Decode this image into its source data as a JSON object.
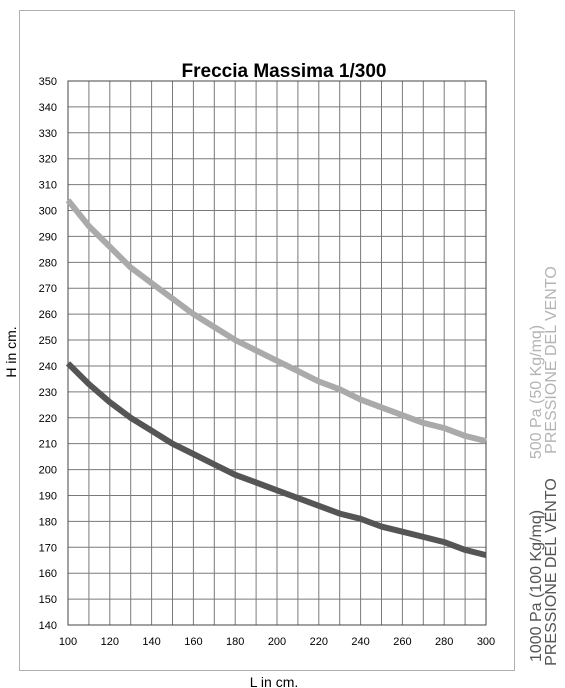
{
  "chart_data": {
    "type": "line",
    "title": "Freccia Massima 1/300",
    "xlabel": "L in cm.",
    "ylabel": "H  in cm.",
    "xlim": [
      100,
      300
    ],
    "ylim": [
      140,
      350
    ],
    "x_ticks": [
      100,
      120,
      140,
      160,
      180,
      200,
      220,
      240,
      260,
      280,
      300
    ],
    "y_ticks": [
      140,
      150,
      160,
      170,
      180,
      190,
      200,
      210,
      220,
      230,
      240,
      250,
      260,
      270,
      280,
      290,
      300,
      310,
      320,
      330,
      340,
      350
    ],
    "grid": true,
    "legend_position": "right",
    "x": [
      100,
      110,
      120,
      130,
      140,
      150,
      160,
      170,
      180,
      190,
      200,
      210,
      220,
      230,
      240,
      250,
      260,
      270,
      280,
      290,
      300
    ],
    "series": [
      {
        "name_line1": "500 Pa (50 Kg/mq)",
        "name_line2": "PRESSIONE DEL VENTO",
        "color": "#aaaaaa",
        "values": [
          304,
          294,
          286,
          278,
          272,
          266,
          260,
          255,
          250,
          246,
          242,
          238,
          234,
          231,
          227,
          224,
          221,
          218,
          216,
          213,
          211
        ]
      },
      {
        "name_line1": "1000 Pa (100 Kg/mq)",
        "name_line2": "PRESSIONE DEL VENTO",
        "color": "#555555",
        "values": [
          241,
          233,
          226,
          220,
          215,
          210,
          206,
          202,
          198,
          195,
          192,
          189,
          186,
          183,
          181,
          178,
          176,
          174,
          172,
          169,
          167
        ]
      }
    ]
  }
}
